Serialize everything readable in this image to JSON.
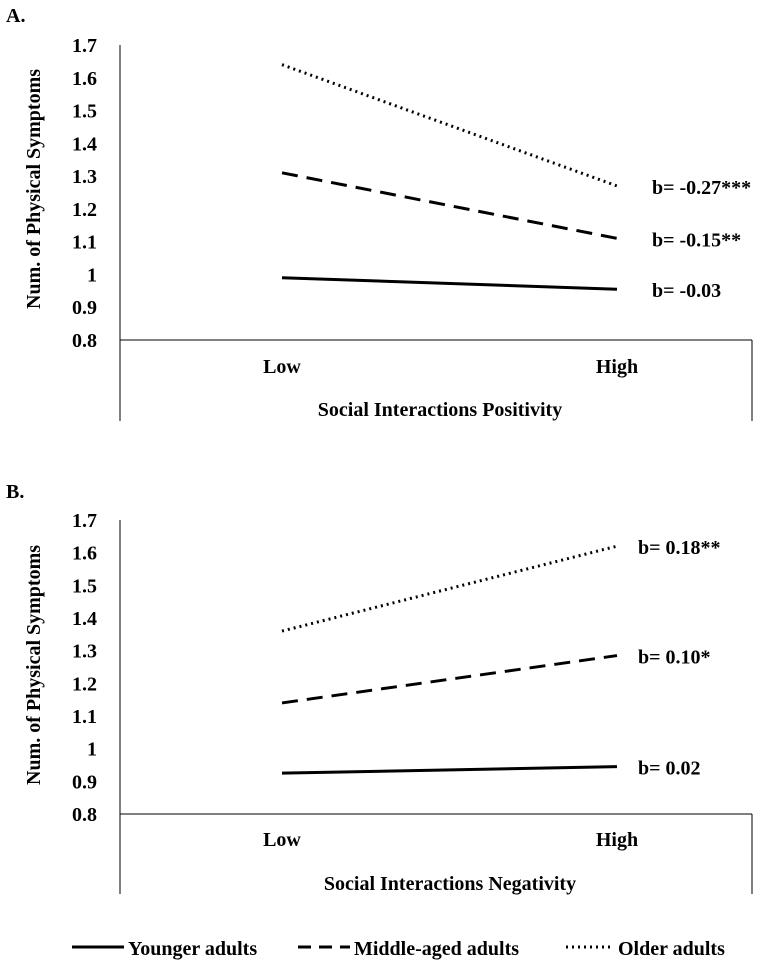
{
  "legend": [
    {
      "name": "Younger adults",
      "style": "solid"
    },
    {
      "name": "Middle-aged adults",
      "style": "dashed"
    },
    {
      "name": "Older adults",
      "style": "dotted"
    }
  ],
  "chart_data": [
    {
      "type": "line",
      "panel_label": "A.",
      "xlabel": "Social Interactions Positivity",
      "ylabel": "Num. of Physical Symptoms",
      "categories": [
        "Low",
        "High"
      ],
      "ylim": [
        0.8,
        1.7
      ],
      "yticks": [
        0.8,
        0.9,
        1,
        1.1,
        1.2,
        1.3,
        1.4,
        1.5,
        1.6,
        1.7
      ],
      "ytick_labels": [
        "0.8",
        "0.9",
        "1",
        "1.1",
        "1.2",
        "1.3",
        "1.4",
        "1.5",
        "1.6",
        "1.7"
      ],
      "series": [
        {
          "name": "Older adults",
          "style": "dotted",
          "values": [
            1.64,
            1.27
          ],
          "annotation": "b= -0.27***"
        },
        {
          "name": "Middle-aged adults",
          "style": "dashed",
          "values": [
            1.31,
            1.11
          ],
          "annotation": "b= -0.15**"
        },
        {
          "name": "Younger adults",
          "style": "solid",
          "values": [
            0.99,
            0.955
          ],
          "annotation": "b= -0.03"
        }
      ]
    },
    {
      "type": "line",
      "panel_label": "B.",
      "xlabel": "Social Interactions Negativity",
      "ylabel": "Num. of Physical Symptoms",
      "categories": [
        "Low",
        "High"
      ],
      "ylim": [
        0.8,
        1.7
      ],
      "yticks": [
        0.8,
        0.9,
        1,
        1.1,
        1.2,
        1.3,
        1.4,
        1.5,
        1.6,
        1.7
      ],
      "ytick_labels": [
        "0.8",
        "0.9",
        "1",
        "1.1",
        "1.2",
        "1.3",
        "1.4",
        "1.5",
        "1.6",
        "1.7"
      ],
      "series": [
        {
          "name": "Older adults",
          "style": "dotted",
          "values": [
            1.36,
            1.62
          ],
          "annotation": "b= 0.18**"
        },
        {
          "name": "Middle-aged adults",
          "style": "dashed",
          "values": [
            1.14,
            1.285
          ],
          "annotation": "b= 0.10*"
        },
        {
          "name": "Younger adults",
          "style": "solid",
          "values": [
            0.925,
            0.945
          ],
          "annotation": "b= 0.02"
        }
      ]
    }
  ]
}
